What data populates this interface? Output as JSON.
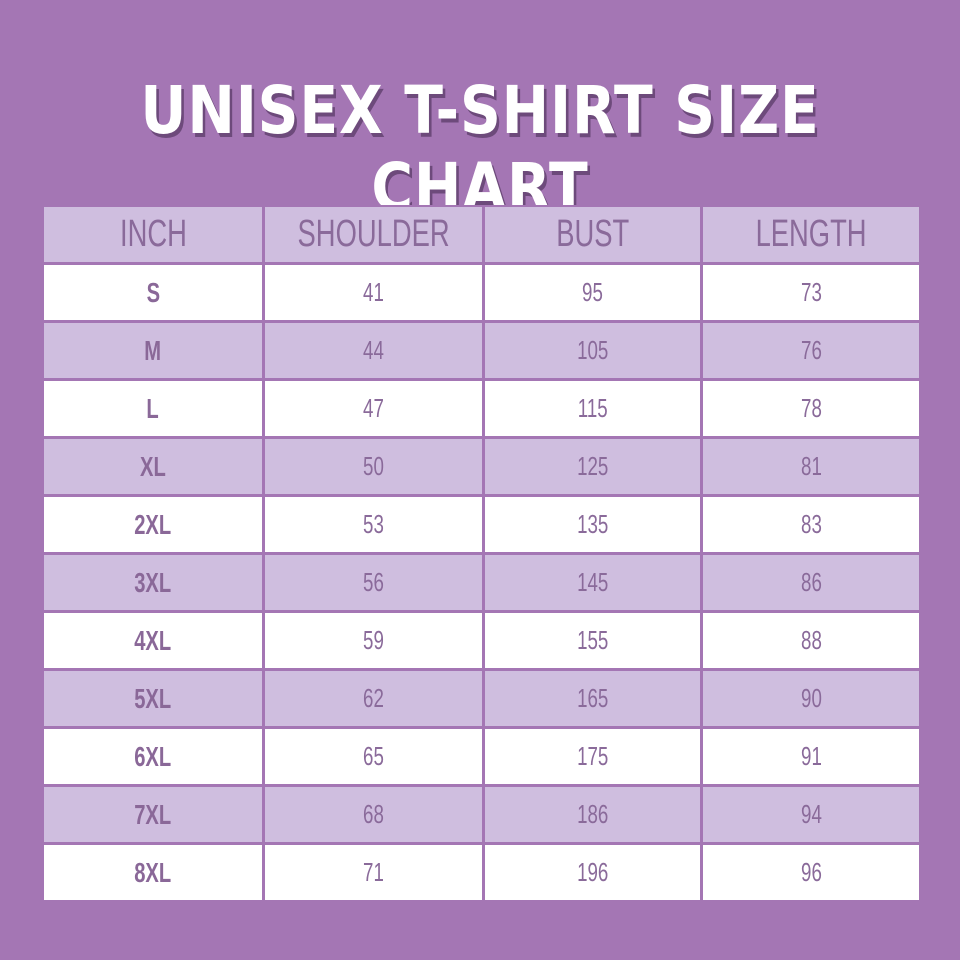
{
  "title": "Unisex T-Shirt Size Chart",
  "colors": {
    "background": "#a476b4",
    "header_fill": "#cfbedf",
    "alt_row_fill": "#cfbedf",
    "row_fill": "#ffffff",
    "text": "#8a6a9a",
    "title": "#ffffff"
  },
  "table": {
    "headers": [
      "INCH",
      "SHOULDER",
      "BUST",
      "LENGTH"
    ],
    "rows": [
      [
        "S",
        "41",
        "95",
        "73"
      ],
      [
        "M",
        "44",
        "105",
        "76"
      ],
      [
        "L",
        "47",
        "115",
        "78"
      ],
      [
        "XL",
        "50",
        "125",
        "81"
      ],
      [
        "2XL",
        "53",
        "135",
        "83"
      ],
      [
        "3XL",
        "56",
        "145",
        "86"
      ],
      [
        "4XL",
        "59",
        "155",
        "88"
      ],
      [
        "5XL",
        "62",
        "165",
        "90"
      ],
      [
        "6XL",
        "65",
        "175",
        "91"
      ],
      [
        "7XL",
        "68",
        "186",
        "94"
      ],
      [
        "8XL",
        "71",
        "196",
        "96"
      ]
    ]
  }
}
